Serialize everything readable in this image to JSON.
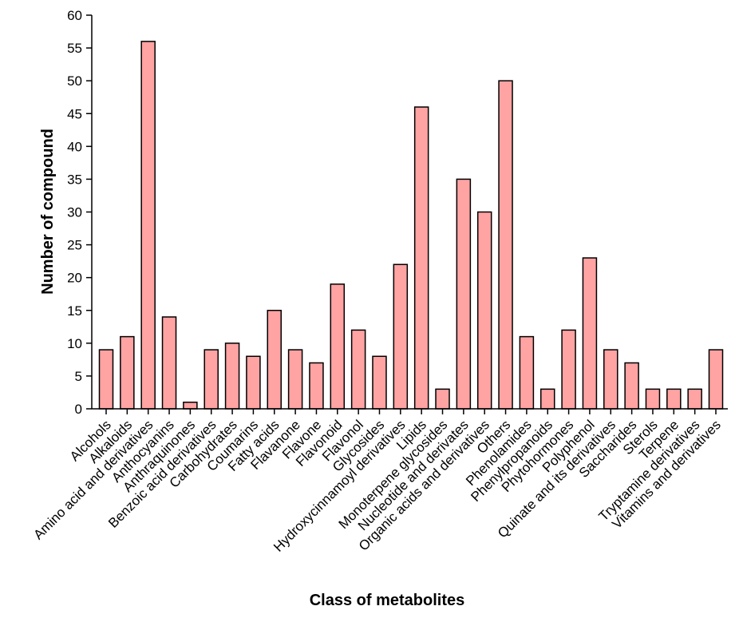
{
  "chart_data": {
    "type": "bar",
    "title": "",
    "xlabel": "Class of metabolites",
    "ylabel": "Number of compound",
    "ylim": [
      0,
      60
    ],
    "yticks": [
      0,
      5,
      10,
      15,
      20,
      25,
      30,
      35,
      40,
      45,
      50,
      55,
      60
    ],
    "bar_color": "#ffa3a3",
    "bar_edge_color": "#000000",
    "categories": [
      "Alcohols",
      "Alkaloids",
      "Amino acid and derivatives",
      "Anthocyanins",
      "Anthraquinones",
      "Benzoic acid derivatives",
      "Carbohydrates",
      "Coumarins",
      "Fatty acids",
      "Flavanone",
      "Flavone",
      "Flavonoid",
      "Flavonol",
      "Glycosides",
      "Hydroxycinnamoyl derivatives",
      "Lipids",
      "Monoterpene glycosides",
      "Nucleotide and derivates",
      "Organic acids and derivatives",
      "Others",
      "Phenolamides",
      "Phenylpropanoids",
      "Phytohormones",
      "Polyphenol",
      "Quinate and its derivatives",
      "Saccharides",
      "Sterols",
      "Terpene",
      "Tryptamine derivatives",
      "Vitamins and derivatives"
    ],
    "values": [
      9,
      11,
      56,
      14,
      1,
      9,
      10,
      8,
      15,
      9,
      7,
      19,
      12,
      8,
      22,
      46,
      3,
      35,
      30,
      50,
      11,
      3,
      12,
      23,
      9,
      7,
      3,
      3,
      3,
      9
    ]
  }
}
